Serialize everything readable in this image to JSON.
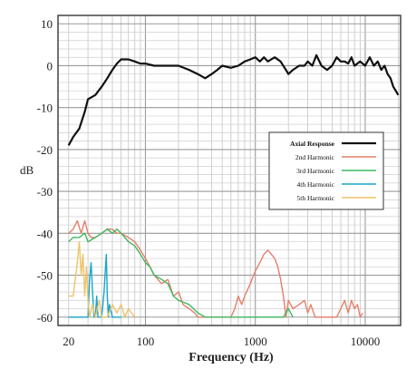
{
  "chart_data": {
    "type": "line",
    "title": "",
    "xlabel": "Frequency (Hz)",
    "ylabel": "dB",
    "x_scale": "log",
    "xlim": [
      16,
      21000
    ],
    "ylim": [
      -62,
      12
    ],
    "grid": true,
    "legend_position": "center-right",
    "x_ticks": [
      {
        "value": 20,
        "label": "20"
      },
      {
        "value": 100,
        "label": "100"
      },
      {
        "value": 1000,
        "label": "1000"
      },
      {
        "value": 10000,
        "label": "10000"
      }
    ],
    "y_ticks": [
      {
        "value": 10,
        "label": "10"
      },
      {
        "value": 0,
        "label": "0"
      },
      {
        "value": -10,
        "label": "-10"
      },
      {
        "value": -20,
        "label": "-20"
      },
      {
        "value": -30,
        "label": "-30"
      },
      {
        "value": -40,
        "label": "-40"
      },
      {
        "value": -50,
        "label": "-50"
      },
      {
        "value": -60,
        "label": "-60"
      }
    ],
    "series": [
      {
        "name": "Axial Response",
        "color": "#111111",
        "x": [
          20,
          22,
          25,
          28,
          30,
          35,
          40,
          45,
          50,
          55,
          60,
          65,
          70,
          80,
          90,
          100,
          120,
          150,
          200,
          250,
          300,
          350,
          400,
          450,
          500,
          600,
          700,
          800,
          900,
          1000,
          1100,
          1200,
          1300,
          1500,
          1700,
          1900,
          2000,
          2200,
          2500,
          2800,
          3000,
          3300,
          3600,
          4000,
          4500,
          5000,
          5500,
          6000,
          6500,
          7000,
          7500,
          8000,
          9000,
          10000,
          11000,
          12000,
          13000,
          14000,
          15000,
          16000,
          17000,
          18000,
          19000,
          20000
        ],
        "y": [
          -19,
          -17,
          -15,
          -11,
          -8,
          -7,
          -5,
          -3,
          -1,
          0.5,
          1.5,
          1.5,
          1.5,
          1,
          0.5,
          0.5,
          0,
          0,
          0,
          -1,
          -2,
          -3,
          -2,
          -1,
          0,
          -0.5,
          0,
          1,
          1.5,
          2,
          1,
          2,
          1,
          2,
          1,
          -1,
          -2,
          -1,
          0,
          0,
          1,
          0,
          2.5,
          0,
          -1,
          0,
          2,
          1,
          1,
          0.5,
          2,
          0,
          1,
          0,
          2,
          0,
          1,
          -1,
          0,
          -2,
          -3,
          -5,
          -6,
          -7
        ]
      },
      {
        "name": "2nd Harmonic",
        "color": "#e47f6c",
        "x": [
          20,
          22,
          24,
          26,
          28,
          30,
          32,
          35,
          40,
          45,
          50,
          55,
          60,
          70,
          80,
          90,
          100,
          110,
          120,
          140,
          160,
          180,
          200,
          220,
          250,
          280,
          300,
          600,
          650,
          700,
          750,
          800,
          900,
          1000,
          1100,
          1200,
          1300,
          1400,
          1500,
          1600,
          1700,
          1800,
          1900,
          2000,
          2200,
          2500,
          2800,
          3000,
          3200,
          3500,
          5500,
          6000,
          6500,
          7000,
          7500,
          8000,
          8500,
          9000,
          9500
        ],
        "y": [
          -40,
          -39,
          -37,
          -40,
          -37,
          -40,
          -41,
          -41,
          -40,
          -39,
          -39,
          -40,
          -40,
          -41,
          -42,
          -44,
          -46,
          -48,
          -50,
          -52,
          -51,
          -55,
          -54,
          -57,
          -58,
          -59,
          -60,
          -60,
          -58,
          -55,
          -57,
          -55,
          -52,
          -49,
          -47,
          -45,
          -44,
          -45,
          -46,
          -48,
          -51,
          -55,
          -60,
          -56,
          -58,
          -57,
          -56,
          -59,
          -57,
          -60,
          -60,
          -58,
          -56,
          -59,
          -56,
          -58,
          -57,
          -60,
          -59
        ]
      },
      {
        "name": "3rd Harmonic",
        "color": "#3fb860",
        "x": [
          20,
          22,
          25,
          28,
          30,
          35,
          40,
          45,
          50,
          55,
          60,
          65,
          70,
          80,
          90,
          100,
          110,
          120,
          140,
          160,
          180,
          200,
          250,
          300,
          350,
          400,
          1800,
          2000,
          2200
        ],
        "y": [
          -42,
          -41,
          -41,
          -40,
          -42,
          -41,
          -40,
          -39,
          -40,
          -39,
          -40,
          -41,
          -42,
          -43,
          -45,
          -47,
          -48,
          -50,
          -51,
          -52,
          -55,
          -56,
          -57,
          -59,
          -60,
          -60,
          -60,
          -58,
          -60
        ]
      },
      {
        "name": "4th Harmonic",
        "color": "#1aa5cf",
        "x": [
          20,
          30,
          31,
          32,
          33,
          34,
          35,
          36,
          37,
          40,
          42,
          44,
          45,
          46,
          47,
          50,
          60
        ],
        "y": [
          -60,
          -60,
          -51,
          -47,
          -54,
          -60,
          -60,
          -55,
          -60,
          -60,
          -54,
          -45,
          -55,
          -60,
          -57,
          -60,
          -60
        ]
      },
      {
        "name": "5th Harmonic",
        "color": "#eec36a",
        "x": [
          20,
          22,
          24,
          25,
          26,
          27,
          28,
          29,
          30,
          31,
          33,
          35,
          38,
          40,
          45,
          50,
          55,
          60,
          65,
          70,
          80
        ],
        "y": [
          -55,
          -55,
          -47,
          -42,
          -50,
          -45,
          -55,
          -48,
          -56,
          -60,
          -57,
          -60,
          -56,
          -60,
          -60,
          -57,
          -59,
          -57,
          -60,
          -58,
          -60
        ]
      }
    ]
  }
}
